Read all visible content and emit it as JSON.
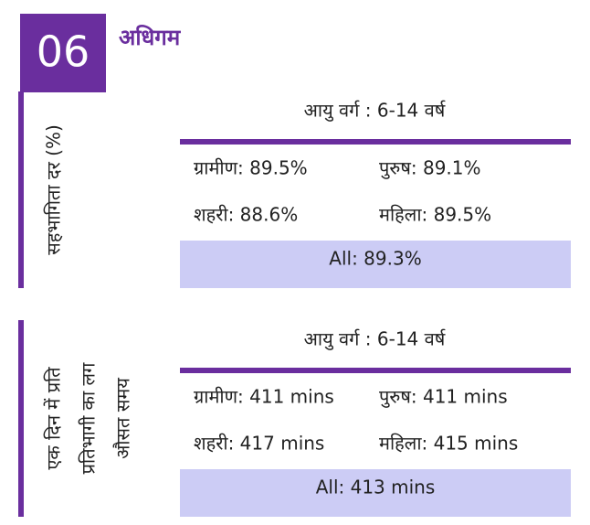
{
  "header": {
    "number": "06",
    "title": "अधिगम"
  },
  "sections": [
    {
      "side_label": [
        "सहभागिता दर (%)"
      ],
      "age_group": "आयु वर्ग : 6-14 वर्ष",
      "cells": [
        [
          "ग्रामीण: 89.5%",
          "पुरुष: 89.1%"
        ],
        [
          "शहरी: 88.6%",
          "महिला: 89.5%"
        ]
      ],
      "total": "All: 89.3%"
    },
    {
      "side_label": [
        "एक दिन में प्रति",
        "प्रतिभागी का लग",
        "औसत समय"
      ],
      "age_group": "आयु वर्ग : 6-14 वर्ष",
      "cells": [
        [
          "ग्रामीण: 411 mins",
          "पुरुष: 411 mins"
        ],
        [
          "शहरी: 417 mins",
          "महिला: 415 mins"
        ]
      ],
      "total": "All: 413 mins"
    }
  ]
}
